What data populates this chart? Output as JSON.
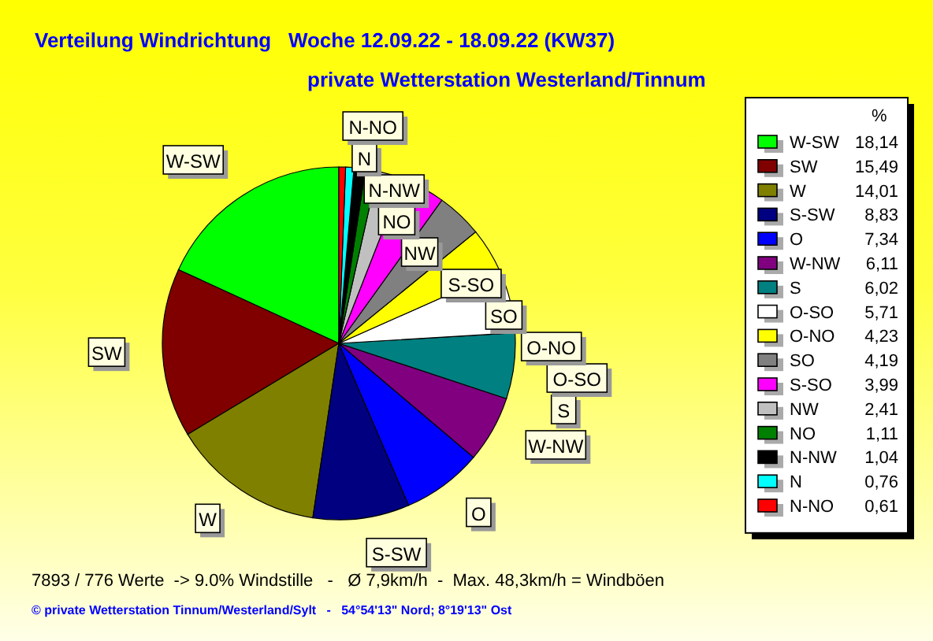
{
  "chart_data": {
    "type": "pie",
    "title": "Verteilung Windrichtung   Woche 12.09.22 - 18.09.22 (KW37)",
    "subtitle": "private Wetterstation Westerland/Tinnum",
    "categories": [
      "W-SW",
      "SW",
      "W",
      "S-SW",
      "O",
      "W-NW",
      "S",
      "O-SO",
      "O-NO",
      "SO",
      "S-SO",
      "NW",
      "NO",
      "N-NW",
      "N",
      "N-NO"
    ],
    "values": [
      18.14,
      15.49,
      14.01,
      8.83,
      7.34,
      6.11,
      6.02,
      5.71,
      4.23,
      4.19,
      3.99,
      2.41,
      1.11,
      1.04,
      0.76,
      0.61
    ],
    "value_labels": [
      "18,14",
      "15,49",
      "14,01",
      "8,83",
      "7,34",
      "6,11",
      "6,02",
      "5,71",
      "4,23",
      "4,19",
      "3,99",
      "2,41",
      "1,11",
      "1,04",
      "0,76",
      "0,61"
    ],
    "colors": [
      "#00ff00",
      "#800000",
      "#808000",
      "#000080",
      "#0000ff",
      "#800080",
      "#008080",
      "#ffffff",
      "#ffff00",
      "#808080",
      "#ff00ff",
      "#c0c0c0",
      "#008000",
      "#000000",
      "#00ffff",
      "#ff0000"
    ],
    "legend": "right",
    "legend_title": "%",
    "annotations": [
      "7893 / 776 Werte  -> 9.0% Windstille   -   Ø 7,9km/h  -  Max. 48,3km/h = Windböen",
      "© private Wetterstation Tinnum/Westerland/Sylt   -   54°54'13\" Nord; 8°19'13\" Ost"
    ]
  }
}
